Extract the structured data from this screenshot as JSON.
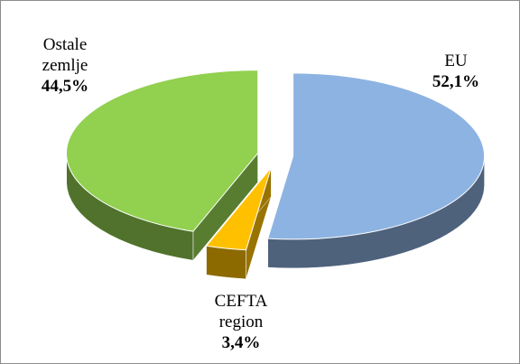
{
  "chart_data": {
    "type": "pie3d",
    "categories": [
      "EU",
      "CEFTA region",
      "Ostale zemlje"
    ],
    "values": [
      52.1,
      3.4,
      44.5
    ],
    "value_labels": [
      "52,1%",
      "3,4%",
      "44,5%"
    ],
    "colors": [
      "#8db3e2",
      "#ffc000",
      "#92d050"
    ]
  }
}
